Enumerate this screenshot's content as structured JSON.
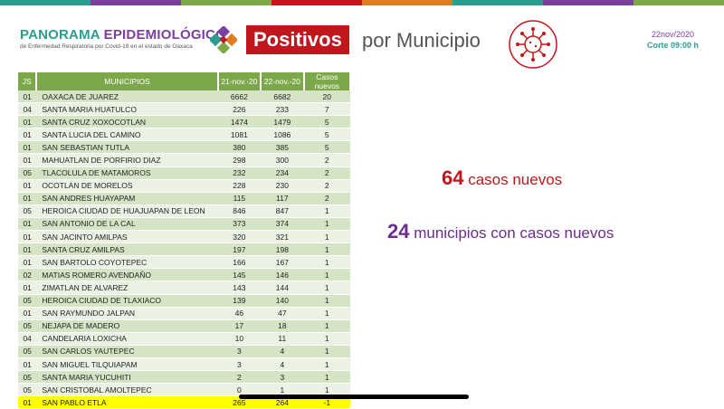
{
  "brand": {
    "title_part1": "PANORAMA",
    "title_part2": "EPIDEMIOLÓGICO",
    "subtitle": "de Enfermedad Respiratoria por Covid-19 en el estado de Oaxaca"
  },
  "header": {
    "title_highlight": "Positivos",
    "title_rest": "por Municipio",
    "date": "22nov/2020",
    "cutoff": "Corte 09:00 h"
  },
  "table": {
    "columns": [
      "JS",
      "MUNICIPIOS",
      "21-nov.-20",
      "22-nov.-20",
      "Casos nuevos"
    ],
    "rows": [
      [
        "01",
        "OAXACA DE JUAREZ",
        "6662",
        "6682",
        "20"
      ],
      [
        "04",
        "SANTA MARIA HUATULCO",
        "226",
        "233",
        "7"
      ],
      [
        "01",
        "SANTA CRUZ XOXOCOTLAN",
        "1474",
        "1479",
        "5"
      ],
      [
        "01",
        "SANTA LUCIA DEL CAMINO",
        "1081",
        "1086",
        "5"
      ],
      [
        "01",
        "SAN SEBASTIAN TUTLA",
        "380",
        "385",
        "5"
      ],
      [
        "01",
        "MAHUATLAN DE PORFIRIO DIAZ",
        "298",
        "300",
        "2"
      ],
      [
        "05",
        "TLACOLULA DE MATAMOROS",
        "232",
        "234",
        "2"
      ],
      [
        "01",
        "OCOTLAN DE MORELOS",
        "228",
        "230",
        "2"
      ],
      [
        "01",
        "SAN ANDRES HUAYAPAM",
        "115",
        "117",
        "2"
      ],
      [
        "05",
        "HEROICA CIUDAD DE HUAJUAPAN DE LEON",
        "846",
        "847",
        "1"
      ],
      [
        "01",
        "SAN ANTONIO DE LA CAL",
        "373",
        "374",
        "1"
      ],
      [
        "01",
        "SAN JACINTO AMILPAS",
        "320",
        "321",
        "1"
      ],
      [
        "01",
        "SANTA CRUZ AMILPAS",
        "197",
        "198",
        "1"
      ],
      [
        "01",
        "SAN BARTOLO COYOTEPEC",
        "166",
        "167",
        "1"
      ],
      [
        "02",
        "MATIAS ROMERO AVENDAÑO",
        "145",
        "146",
        "1"
      ],
      [
        "01",
        "ZIMATLAN DE ALVAREZ",
        "143",
        "144",
        "1"
      ],
      [
        "05",
        "HEROICA CIUDAD DE TLAXIACO",
        "139",
        "140",
        "1"
      ],
      [
        "01",
        "SAN RAYMUNDO JALPAN",
        "46",
        "47",
        "1"
      ],
      [
        "05",
        "NEJAPA DE MADERO",
        "17",
        "18",
        "1"
      ],
      [
        "04",
        "CANDELARIA LOXICHA",
        "10",
        "11",
        "1"
      ],
      [
        "05",
        "SAN CARLOS YAUTEPEC",
        "3",
        "4",
        "1"
      ],
      [
        "01",
        "SAN MIGUEL TILQUIAPAM",
        "3",
        "4",
        "1"
      ],
      [
        "05",
        "SANTA MARIA YUCUHITI",
        "2",
        "3",
        "1"
      ],
      [
        "05",
        "SAN CRISTOBAL AMOLTEPEC",
        "0",
        "1",
        "1"
      ],
      [
        "01",
        "SAN PABLO ETLA",
        "265",
        "264",
        "-1"
      ]
    ]
  },
  "stats": {
    "new_cases_num": "64",
    "new_cases_label": "casos nuevos",
    "municipios_num": "24",
    "municipios_label": "municipios con casos nuevos"
  },
  "colors": {
    "brand_teal": "#2a9d8f",
    "brand_purple": "#7b3fa0",
    "red": "#c0161c",
    "table_header": "#7da84a",
    "highlight": "#ffff00"
  }
}
